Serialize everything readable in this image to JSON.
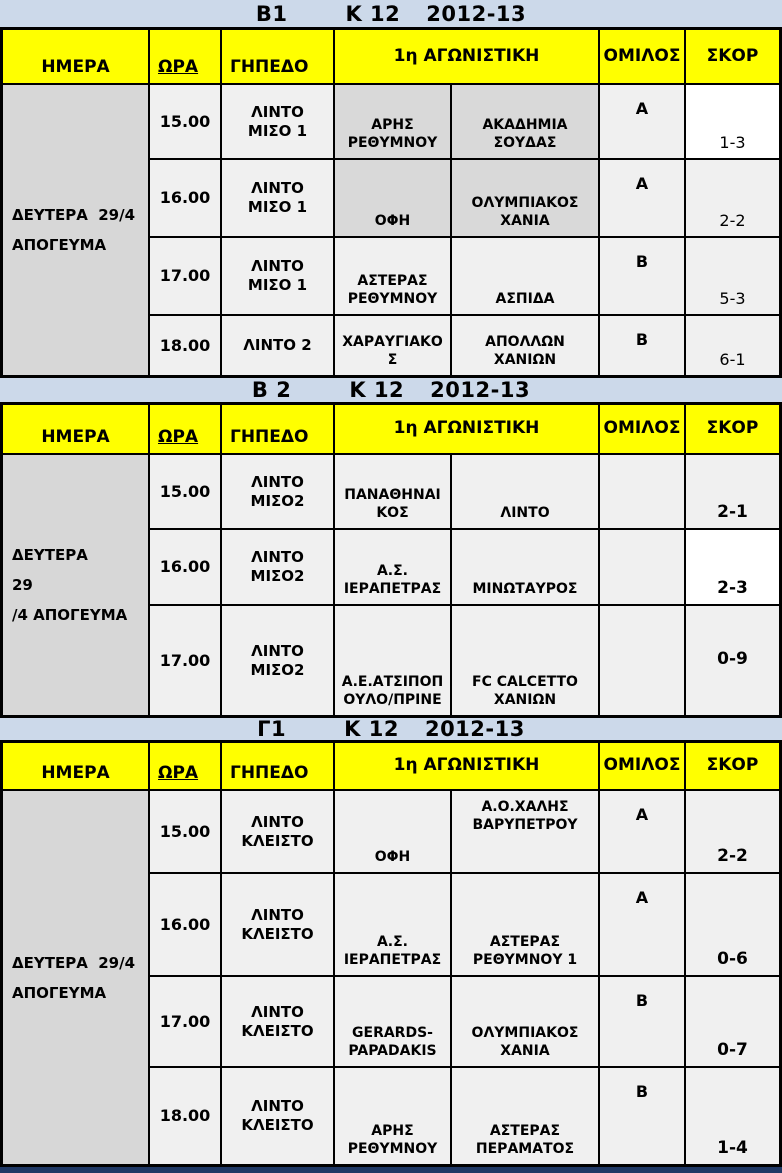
{
  "colors": {
    "title_band_bg": "#ccd9ea",
    "header_bg": "#ffff00",
    "day_column_bg": "#d7d7d7",
    "cell_bg": "#f0f0f0",
    "highlight_cell_bg": "#d9d9d9",
    "white_cell_bg": "#ffffff",
    "grid_border": "#000000",
    "footer_strip": "#1f3864"
  },
  "sections": [
    {
      "title": {
        "division": "B1",
        "category": "K 12",
        "season": "2012-13"
      },
      "headers": {
        "day": "ΗΜΕΡΑ",
        "time": "ΩΡΑ",
        "venue": "ΓΗΠΕΔΟ",
        "matchday": "1η ΑΓΩΝΙΣΤΙΚΗ",
        "group": "ΟΜΙΛΟΣ",
        "score": "ΣΚΟΡ"
      },
      "day": {
        "line1": "ΔΕΥΤΕΡΑ  29/4",
        "line2": "ΑΠΟΓΕΥΜΑ"
      },
      "rows": [
        {
          "time": "15.00",
          "venue": "ΛΙΝΤΟ ΜΙΣΟ 1",
          "home": "ΑΡΗΣ ΡΕΘΥΜΝΟΥ",
          "away": "ΑΚΑΔΗΜΙΑ ΣΟΥΔΑΣ",
          "group": "Α",
          "score": "1-3",
          "home_bg": "highlight",
          "away_bg": "highlight",
          "score_bg": "white"
        },
        {
          "time": "16.00",
          "venue": "ΛΙΝΤΟ ΜΙΣΟ 1",
          "home": "ΟΦΗ",
          "away": "ΟΛΥΜΠΙΑΚΟΣ ΧΑΝΙΑ",
          "group": "Α",
          "score": "2-2",
          "home_bg": "highlight",
          "away_bg": "highlight"
        },
        {
          "time": "17.00",
          "venue": "ΛΙΝΤΟ ΜΙΣΟ 1",
          "home": "ΑΣΤΕΡΑΣ ΡΕΘΥΜΝΟΥ",
          "away": "ΑΣΠΙΔΑ",
          "group": "Β",
          "score": "5-3"
        },
        {
          "time": "18.00",
          "venue": "ΛΙΝΤΟ 2",
          "home": "ΧΑΡΑΥΓΙΑΚΟΣ",
          "away": "ΑΠΟΛΛΩΝ ΧΑΝΙΩΝ",
          "group": "Β",
          "score": "6-1"
        }
      ]
    },
    {
      "title": {
        "division": "Β 2",
        "category": "K 12",
        "season": "2012-13"
      },
      "headers": {
        "day": "ΗΜΕΡΑ",
        "time": "ΩΡΑ",
        "venue": "ΓΗΠΕΔΟ",
        "matchday": "1η ΑΓΩΝΙΣΤΙΚΗ",
        "group": "ΟΜΙΛΟΣ",
        "score": "ΣΚΟΡ"
      },
      "day": {
        "line1": "ΔΕΥΤΕΡΑ       29",
        "line2": "/4 ΑΠΟΓΕΥΜΑ"
      },
      "rows": [
        {
          "time": "15.00",
          "venue": "ΛΙΝΤΟ ΜΙΣΟ2",
          "home": "ΠΑΝΑΘΗΝΑΙΚΟΣ",
          "away": "ΛΙΝΤΟ",
          "group": "",
          "score": "2-1"
        },
        {
          "time": "16.00",
          "venue": "ΛΙΝΤΟ ΜΙΣΟ2",
          "home": "Α.Σ. ΙΕΡΑΠΕΤΡΑΣ",
          "away": "ΜΙΝΩΤΑΥΡΟΣ",
          "group": "",
          "score": "2-3",
          "score_bg": "white"
        },
        {
          "time": "17.00",
          "venue": "ΛΙΝΤΟ ΜΙΣΟ2",
          "home": "Α.Ε.ΑΤΣΙΠΟΠΟΥΛΟ/ΠΡΙΝΕ",
          "away": "FC CALCETTO ΧΑΝΙΩΝ",
          "group": "",
          "score": "0-9"
        }
      ]
    },
    {
      "title": {
        "division": "Γ1",
        "category": "K 12",
        "season": "2012-13"
      },
      "headers": {
        "day": "ΗΜΕΡΑ",
        "time": "ΩΡΑ",
        "venue": "ΓΗΠΕΔΟ",
        "matchday": "1η ΑΓΩΝΙΣΤΙΚΗ",
        "group": "ΟΜΙΛΟΣ",
        "score": "ΣΚΟΡ"
      },
      "day": {
        "line1": "ΔΕΥΤΕΡΑ  29/4",
        "line2": "ΑΠΟΓΕΥΜΑ"
      },
      "rows": [
        {
          "time": "15.00",
          "venue": "ΛΙΝΤΟ ΚΛΕΙΣΤΟ",
          "home": "ΟΦΗ",
          "away": "Α.Ο.ΧΑΛΗΣ ΒΑΡΥΠΕΤΡΟΥ",
          "group": "Α",
          "score": "2-2"
        },
        {
          "time": "16.00",
          "venue": "ΛΙΝΤΟ ΚΛΕΙΣΤΟ",
          "home": "Α.Σ. ΙΕΡΑΠΕΤΡΑΣ",
          "away": "ΑΣΤΕΡΑΣ ΡΕΘΥΜΝΟΥ 1",
          "group": "Α",
          "score": "0-6"
        },
        {
          "time": "17.00",
          "venue": "ΛΙΝΤΟ ΚΛΕΙΣΤΟ",
          "home": "GERARDS-PAPADAKIS",
          "away": "ΟΛΥΜΠΙΑΚΟΣ ΧΑΝΙΑ",
          "group": "Β",
          "score": "0-7"
        },
        {
          "time": "18.00",
          "venue": "ΛΙΝΤΟ ΚΛΕΙΣΤΟ",
          "home": "ΑΡΗΣ ΡΕΘΥΜΝΟΥ",
          "away": "ΑΣΤΕΡΑΣ ΠΕΡΑΜΑΤΟΣ",
          "group": "Β",
          "score": "1-4"
        }
      ]
    }
  ]
}
